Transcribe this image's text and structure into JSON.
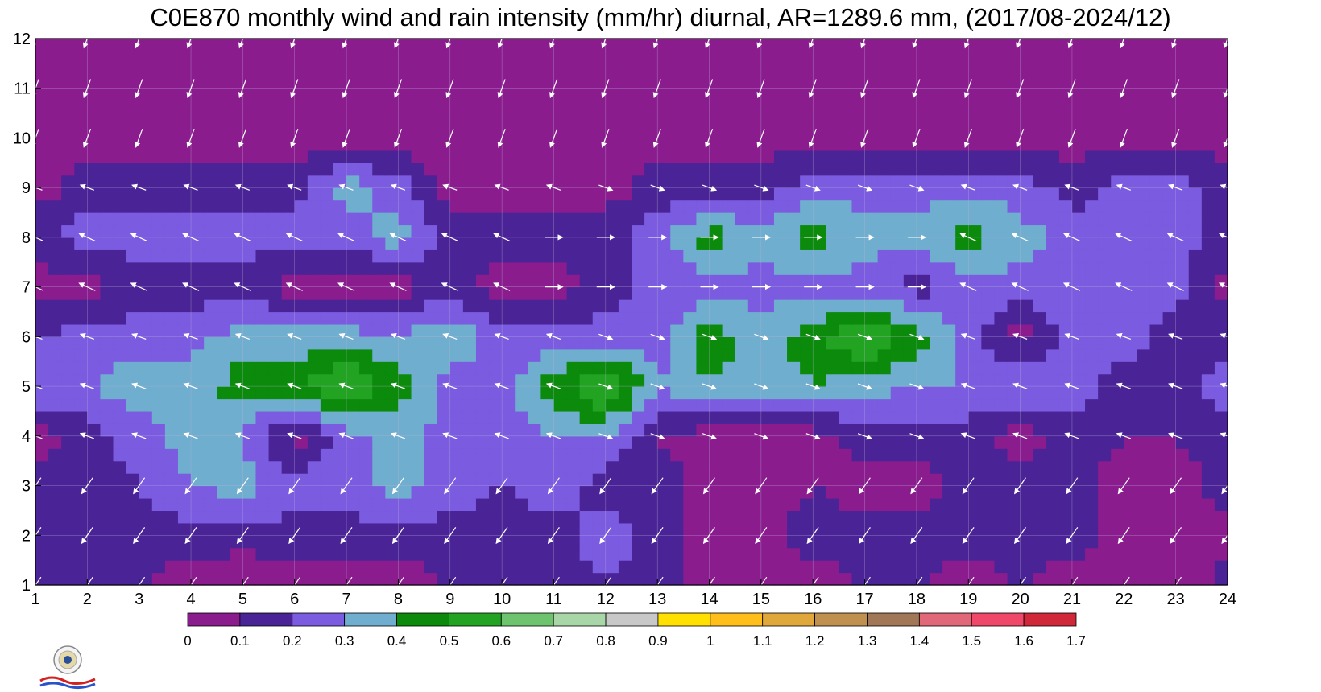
{
  "chart_data": {
    "type": "heatmap",
    "title": "C0E870 monthly wind and rain intensity (mm/hr) diurnal, AR=1289.6 mm, (2017/08-2024/12)",
    "xlabel": "",
    "ylabel": "",
    "x_ticks": [
      "1",
      "2",
      "3",
      "4",
      "5",
      "6",
      "7",
      "8",
      "9",
      "10",
      "11",
      "12",
      "13",
      "14",
      "15",
      "16",
      "17",
      "18",
      "19",
      "20",
      "21",
      "22",
      "23",
      "24"
    ],
    "y_ticks": [
      "1",
      "2",
      "3",
      "4",
      "5",
      "6",
      "7",
      "8",
      "9",
      "10",
      "11",
      "12"
    ],
    "xlim": [
      1,
      24
    ],
    "ylim": [
      1,
      12
    ],
    "grid": true,
    "levels": [
      0,
      0.1,
      0.2,
      0.3,
      0.4,
      0.5,
      0.6,
      0.7,
      0.8,
      0.9,
      1.0,
      1.1,
      1.2,
      1.3,
      1.4,
      1.5,
      1.6,
      1.7
    ],
    "colorbar_labels": [
      "0",
      "0.1",
      "0.2",
      "0.3",
      "0.4",
      "0.5",
      "0.6",
      "0.7",
      "0.8",
      "0.9",
      "1",
      "1.1",
      "1.2",
      "1.3",
      "1.4",
      "1.5",
      "1.6",
      "1.7"
    ],
    "colors": [
      "#8B1C8E",
      "#4A2496",
      "#7B5BE0",
      "#6FAECE",
      "#0B8A0B",
      "#22A322",
      "#6EC46E",
      "#A8D6A8",
      "#C8C8C8",
      "#FFE000",
      "#FFBE1A",
      "#E0A83A",
      "#C09050",
      "#A07858",
      "#E06878",
      "#F04868",
      "#D02838"
    ],
    "contour_line_color": "#FFA500",
    "vector_color": "#FFFFFF",
    "rain_rows": [
      [
        0.15,
        0.15,
        0.1,
        0.05,
        0.0,
        0.05,
        0.05,
        0.05,
        0.1,
        0.1,
        0.15,
        0.2,
        0.15,
        0.05,
        0.0,
        0.05,
        0.1,
        0.1,
        0.05,
        0.1,
        0.05,
        0.0,
        0.0,
        0.15
      ],
      [
        0.1,
        0.15,
        0.15,
        0.15,
        0.15,
        0.15,
        0.15,
        0.15,
        0.15,
        0.15,
        0.15,
        0.25,
        0.15,
        0.05,
        0.05,
        0.15,
        0.15,
        0.15,
        0.15,
        0.15,
        0.15,
        0.05,
        0.05,
        0.05
      ],
      [
        0.15,
        0.15,
        0.2,
        0.3,
        0.35,
        0.25,
        0.25,
        0.35,
        0.25,
        0.2,
        0.25,
        0.15,
        0.15,
        0.05,
        0.05,
        0.1,
        0.05,
        0.05,
        0.15,
        0.15,
        0.15,
        0.05,
        0.05,
        0.15
      ],
      [
        0.05,
        0.15,
        0.25,
        0.35,
        0.3,
        0.05,
        0.25,
        0.35,
        0.25,
        0.25,
        0.3,
        0.3,
        0.1,
        0.05,
        0.05,
        0.05,
        0.15,
        0.15,
        0.15,
        0.05,
        0.15,
        0.1,
        0.1,
        0.15
      ],
      [
        0.3,
        0.3,
        0.35,
        0.35,
        0.45,
        0.45,
        0.65,
        0.45,
        0.25,
        0.25,
        0.45,
        0.65,
        0.3,
        0.4,
        0.35,
        0.4,
        0.35,
        0.3,
        0.3,
        0.3,
        0.25,
        0.15,
        0.15,
        0.25
      ],
      [
        0.2,
        0.25,
        0.25,
        0.25,
        0.35,
        0.35,
        0.35,
        0.3,
        0.4,
        0.25,
        0.25,
        0.25,
        0.25,
        0.45,
        0.35,
        0.45,
        0.65,
        0.45,
        0.25,
        0.05,
        0.25,
        0.25,
        0.15,
        0.15
      ],
      [
        0.05,
        0.05,
        0.15,
        0.15,
        0.15,
        0.05,
        0.05,
        0.05,
        0.15,
        0.05,
        0.05,
        0.15,
        0.25,
        0.25,
        0.25,
        0.25,
        0.25,
        0.15,
        0.25,
        0.25,
        0.25,
        0.25,
        0.25,
        0.05
      ],
      [
        0.15,
        0.25,
        0.25,
        0.25,
        0.25,
        0.25,
        0.25,
        0.35,
        0.15,
        0.15,
        0.15,
        0.15,
        0.25,
        0.45,
        0.35,
        0.45,
        0.35,
        0.35,
        0.45,
        0.35,
        0.25,
        0.25,
        0.25,
        0.15
      ],
      [
        0.05,
        0.15,
        0.15,
        0.15,
        0.15,
        0.15,
        0.35,
        0.25,
        0.05,
        0.05,
        0.05,
        0.05,
        0.15,
        0.15,
        0.15,
        0.25,
        0.25,
        0.25,
        0.25,
        0.25,
        0.15,
        0.25,
        0.25,
        0.15
      ],
      [
        0.05,
        0.05,
        0.05,
        0.05,
        0.05,
        0.05,
        0.05,
        0.05,
        0.05,
        0.05,
        0.05,
        0.05,
        0.05,
        0.05,
        0.05,
        0.05,
        0.05,
        0.05,
        0.05,
        0.05,
        0.05,
        0.05,
        0.05,
        0.05
      ],
      [
        0.05,
        0.05,
        0.05,
        0.05,
        0.05,
        0.05,
        0.05,
        0.05,
        0.05,
        0.05,
        0.05,
        0.05,
        0.05,
        0.05,
        0.05,
        0.05,
        0.05,
        0.05,
        0.05,
        0.05,
        0.05,
        0.05,
        0.05,
        0.05
      ],
      [
        0.05,
        0.05,
        0.05,
        0.05,
        0.05,
        0.05,
        0.05,
        0.05,
        0.05,
        0.05,
        0.05,
        0.05,
        0.05,
        0.05,
        0.05,
        0.05,
        0.05,
        0.05,
        0.05,
        0.05,
        0.05,
        0.05,
        0.05,
        0.05
      ]
    ]
  }
}
